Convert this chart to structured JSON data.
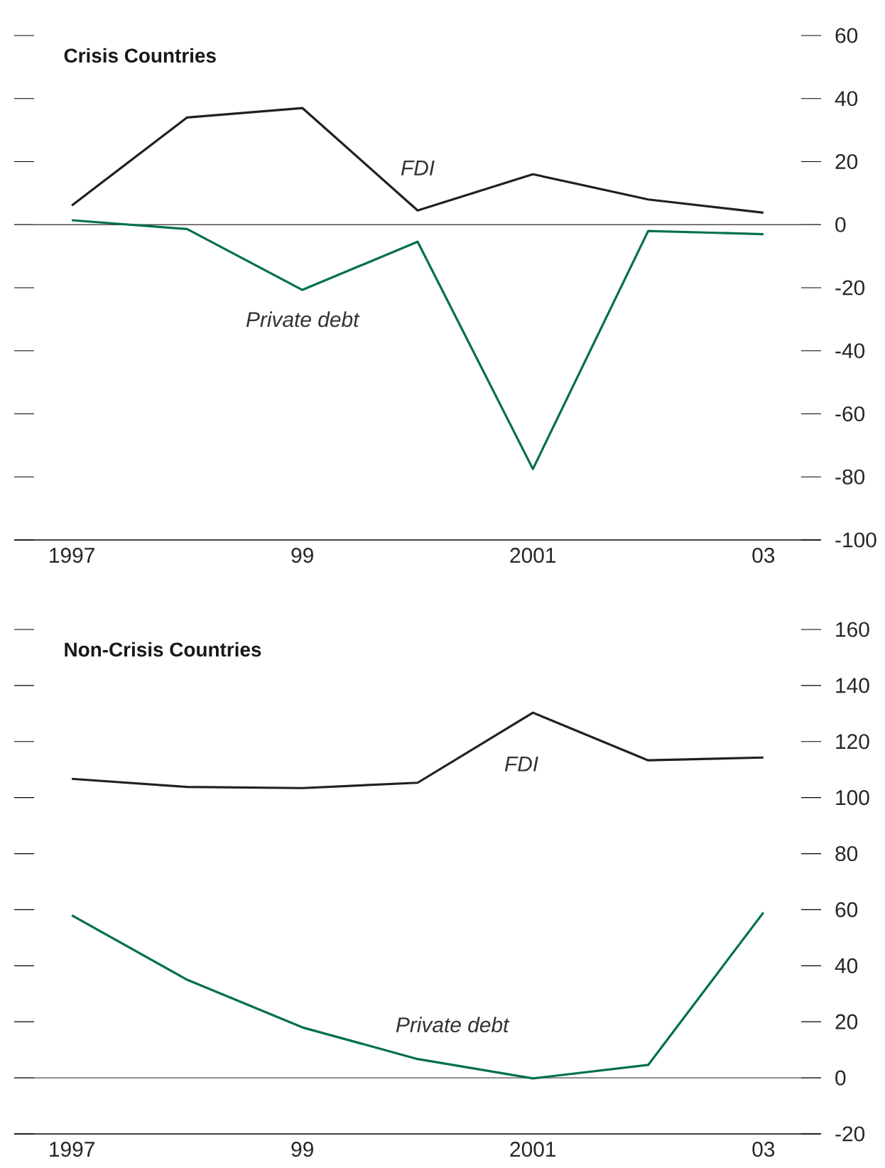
{
  "chart_data": [
    {
      "type": "line",
      "title": "Crisis Countries",
      "categories": [
        "1997",
        null,
        "99",
        null,
        "2001",
        null,
        "03"
      ],
      "series": [
        {
          "name": "FDI",
          "color": "#231f20",
          "values": [
            6.1,
            34,
            37,
            4.5,
            16,
            8,
            3.8
          ]
        },
        {
          "name": "Private debt",
          "color": "#00704a",
          "values": [
            1.4,
            -1.4,
            -20.7,
            -5.4,
            -77.5,
            -2,
            -3
          ]
        }
      ],
      "ylim": [
        -100,
        60
      ],
      "yticks": [
        -100,
        -80,
        -60,
        -40,
        -20,
        0,
        20,
        40,
        60
      ],
      "ref_lines": [
        {
          "axis": "y",
          "value": 0
        }
      ]
    },
    {
      "type": "line",
      "title": "Non-Crisis Countries",
      "categories": [
        "1997",
        null,
        "99",
        null,
        "2001",
        null,
        "03"
      ],
      "series": [
        {
          "name": "FDI",
          "color": "#231f20",
          "values": [
            106.7,
            103.8,
            103.4,
            105.3,
            130.3,
            113.3,
            114.3
          ]
        },
        {
          "name": "Private debt",
          "color": "#00704a",
          "values": [
            58,
            35,
            18,
            6.7,
            -0.2,
            4.6,
            59
          ]
        }
      ],
      "ylim": [
        -20,
        160
      ],
      "yticks": [
        -20,
        0,
        20,
        40,
        60,
        80,
        100,
        120,
        140,
        160
      ],
      "ref_lines": [
        {
          "axis": "y",
          "value": 0
        }
      ]
    }
  ]
}
